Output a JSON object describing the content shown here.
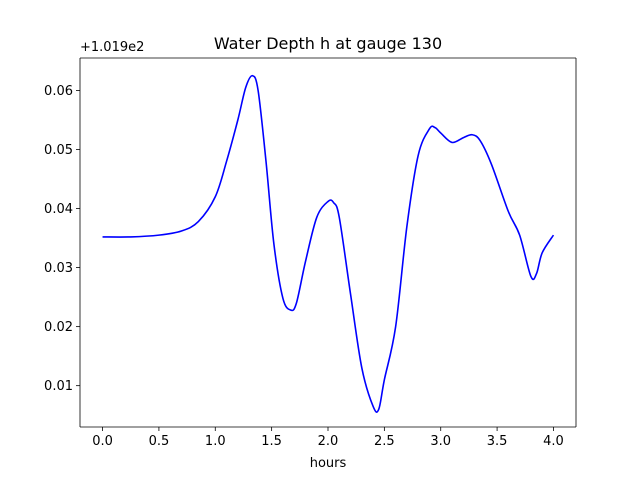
{
  "chart_data": {
    "type": "line",
    "title": "Water Depth h at gauge 130",
    "xlabel": "hours",
    "ylabel": "",
    "y_offset_label": "+1.019e2",
    "xlim": [
      -0.2,
      4.2
    ],
    "ylim": [
      0.003,
      0.0655
    ],
    "x_ticks": [
      0.0,
      0.5,
      1.0,
      1.5,
      2.0,
      2.5,
      3.0,
      3.5,
      4.0
    ],
    "x_tick_labels": [
      "0.0",
      "0.5",
      "1.0",
      "1.5",
      "2.0",
      "2.5",
      "3.0",
      "3.5",
      "4.0"
    ],
    "y_ticks": [
      0.01,
      0.02,
      0.03,
      0.04,
      0.05,
      0.06
    ],
    "y_tick_labels": [
      "0.01",
      "0.02",
      "0.03",
      "0.04",
      "0.05",
      "0.06"
    ],
    "grid": false,
    "line_color": "#0000ff",
    "series": [
      {
        "x": [
          0.0,
          0.25,
          0.5,
          0.7,
          0.85,
          1.0,
          1.1,
          1.2,
          1.27,
          1.33,
          1.38,
          1.45,
          1.52,
          1.6,
          1.67,
          1.72,
          1.8,
          1.9,
          2.0,
          2.05,
          2.1,
          2.2,
          2.3,
          2.4,
          2.45,
          2.5,
          2.6,
          2.7,
          2.8,
          2.9,
          2.95,
          3.0,
          3.1,
          3.2,
          3.28,
          3.35,
          3.45,
          3.6,
          3.7,
          3.8,
          3.85,
          3.9,
          4.0
        ],
        "y": [
          0.0352,
          0.0352,
          0.0355,
          0.0362,
          0.0378,
          0.042,
          0.048,
          0.055,
          0.0605,
          0.0625,
          0.06,
          0.048,
          0.034,
          0.0248,
          0.0228,
          0.024,
          0.031,
          0.0385,
          0.0412,
          0.041,
          0.0385,
          0.0255,
          0.013,
          0.0065,
          0.006,
          0.011,
          0.02,
          0.037,
          0.049,
          0.0535,
          0.0537,
          0.0528,
          0.0512,
          0.052,
          0.0525,
          0.0515,
          0.0475,
          0.0395,
          0.0355,
          0.0285,
          0.029,
          0.0325,
          0.0355
        ]
      }
    ]
  }
}
